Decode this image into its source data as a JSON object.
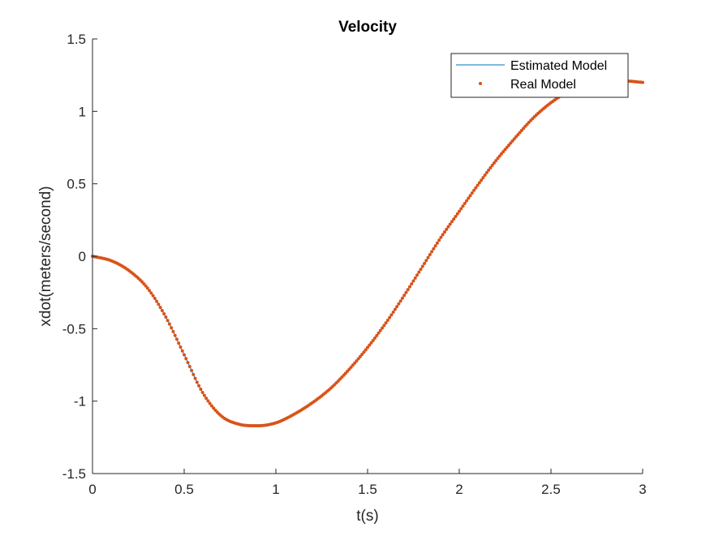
{
  "chart_data": {
    "type": "line",
    "title": "Velocity",
    "xlabel": "t(s)",
    "ylabel": "xdot(meters/second)",
    "xlim": [
      0,
      3
    ],
    "ylim": [
      -1.5,
      1.5
    ],
    "xticks": [
      "0",
      "0.5",
      "1",
      "1.5",
      "2",
      "2.5",
      "3"
    ],
    "yticks": [
      "1.5",
      "1",
      "0.5",
      "0",
      "-0.5",
      "-1",
      "-1.5"
    ],
    "grid": false,
    "legend_placement": "top-right",
    "x": [
      0,
      0.1,
      0.2,
      0.3,
      0.4,
      0.5,
      0.6,
      0.7,
      0.8,
      0.9,
      1.0,
      1.1,
      1.2,
      1.3,
      1.4,
      1.5,
      1.6,
      1.7,
      1.8,
      1.9,
      2.0,
      2.1,
      2.2,
      2.3,
      2.4,
      2.5,
      2.6,
      2.7,
      2.8,
      2.9,
      3.0
    ],
    "series": [
      {
        "name": "Estimated Model",
        "style": "line",
        "color": "#0072BD",
        "values": [
          0,
          -0.03,
          -0.1,
          -0.22,
          -0.42,
          -0.68,
          -0.94,
          -1.1,
          -1.16,
          -1.17,
          -1.15,
          -1.09,
          -1.01,
          -0.91,
          -0.78,
          -0.63,
          -0.46,
          -0.27,
          -0.07,
          0.13,
          0.31,
          0.49,
          0.66,
          0.81,
          0.95,
          1.06,
          1.14,
          1.19,
          1.21,
          1.21,
          1.2
        ]
      },
      {
        "name": "Real Model",
        "style": "dots",
        "color": "#D95319",
        "values": [
          0,
          -0.03,
          -0.1,
          -0.22,
          -0.42,
          -0.68,
          -0.94,
          -1.1,
          -1.16,
          -1.17,
          -1.15,
          -1.09,
          -1.01,
          -0.91,
          -0.78,
          -0.63,
          -0.46,
          -0.27,
          -0.07,
          0.13,
          0.31,
          0.49,
          0.66,
          0.81,
          0.95,
          1.06,
          1.14,
          1.19,
          1.21,
          1.21,
          1.2
        ]
      }
    ]
  }
}
